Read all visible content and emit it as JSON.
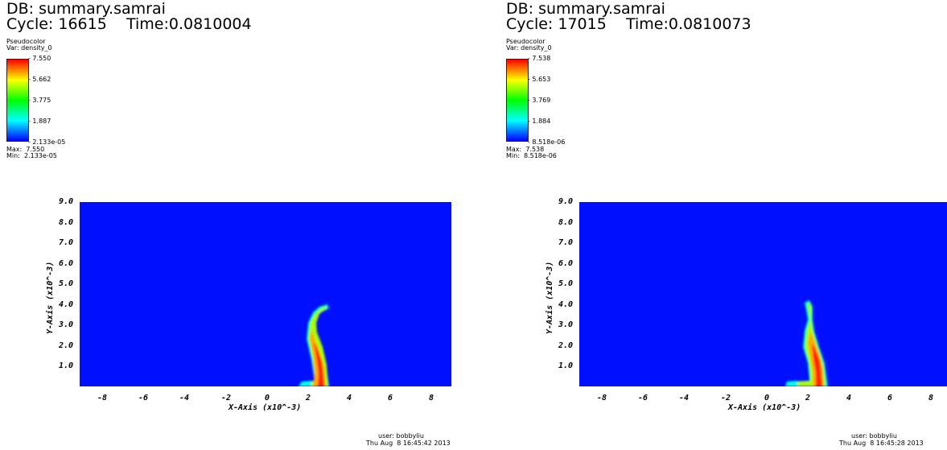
{
  "panels": [
    {
      "db": "DB: summary.samrai",
      "cycle": "Cycle: 16615    Time:0.0810004",
      "legend_title": "Pseudocolor",
      "legend_var": "Var: density_0",
      "ticks": [
        "- 7.550",
        "- 5.662",
        "- 3.775",
        "- 1.887",
        "- 2.133e-05"
      ],
      "max": "Max:  7.550",
      "min": "Min:  2.133e-05",
      "user": "user: bobbyliu",
      "date": "Thu Aug  8 16:45:42 2013"
    },
    {
      "db": "DB: summary.samrai",
      "cycle": "Cycle: 17015    Time:0.0810073",
      "legend_title": "Pseudocolor",
      "legend_var": "Var: density_0",
      "ticks": [
        "- 7.538",
        "- 5.653",
        "- 3.769",
        "- 1.884",
        "- 8.518e-06"
      ],
      "max": "Max:  7.538",
      "min": "Min:  8.518e-06",
      "user": "user: bobbyliu",
      "date": "Thu Aug  8 16:45:28 2013"
    }
  ],
  "axes": {
    "y_ticks": [
      "9.0",
      "8.0",
      "7.0",
      "6.0",
      "5.0",
      "4.0",
      "3.0",
      "2.0",
      "1.0"
    ],
    "x_ticks": [
      "-8",
      "-6",
      "-4",
      "-2",
      "0",
      "2",
      "4",
      "6",
      "8"
    ],
    "x_title": "X-Axis (x10^-3)",
    "y_title": "Y-Axis (x10^-3)"
  },
  "colors": {
    "field_background": "#0010ff",
    "legend_gradient": [
      "#ff0000",
      "#ffff00",
      "#00ff00",
      "#00ffff",
      "#0000ff"
    ]
  }
}
